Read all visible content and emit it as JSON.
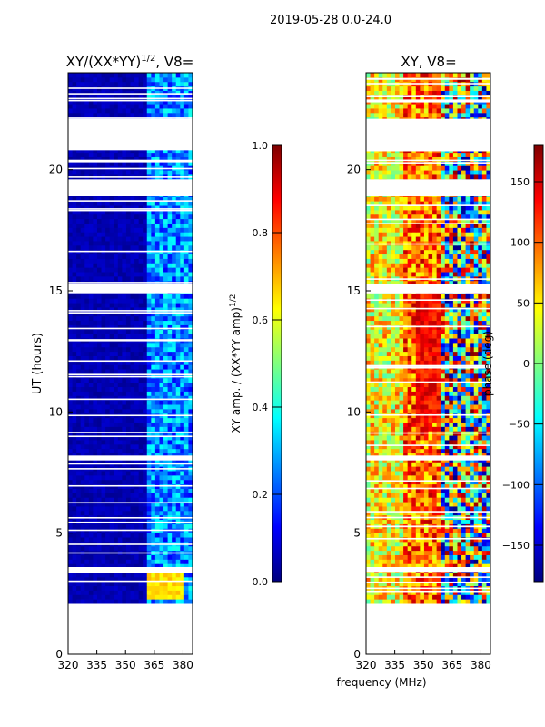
{
  "suptitle": "2019-05-28 0.0-24.0",
  "colors": {
    "jet": [
      "#00007f",
      "#0000ff",
      "#007fff",
      "#00ffff",
      "#7fff7f",
      "#ffff00",
      "#ff7f00",
      "#ff0000",
      "#7f0000"
    ],
    "axes": "#000000",
    "background": "#ffffff"
  },
  "chart_data": [
    {
      "type": "heatmap",
      "title_main": "XY/(XX*YY)",
      "title_exp": "1/2",
      "title_suffix": ", V8=",
      "xlabel": "",
      "ylabel": "UT (hours)",
      "xlim": [
        320,
        385
      ],
      "ylim": [
        0,
        24
      ],
      "xticks": [
        "320",
        "335",
        "350",
        "365",
        "380"
      ],
      "xtick_values": [
        320,
        335,
        350,
        365,
        380
      ],
      "yticks": [
        "0",
        "5",
        "10",
        "15",
        "20"
      ],
      "ytick_values": [
        0,
        5,
        10,
        15,
        20
      ],
      "data_extent_hours": [
        2.1,
        24
      ],
      "description_bands": [
        {
          "from_mhz": 320,
          "to_mhz": 361,
          "level": 0.05
        },
        {
          "from_mhz": 361,
          "to_mhz": 385,
          "level": 0.25
        }
      ],
      "bright_region": {
        "hours": [
          2.2,
          3.3
        ],
        "mhz": [
          361,
          380
        ],
        "level": 0.6
      },
      "gap_hours": [
        [
          20.8,
          22.1
        ],
        [
          18.9,
          19.6
        ],
        [
          14.9,
          15.3
        ],
        [
          8.0,
          8.2
        ],
        [
          3.4,
          3.6
        ]
      ],
      "colorbar": {
        "label_main": "XY amp. / (XX*YY amp)",
        "label_exp": "1/2",
        "ticks": [
          "0.0",
          "0.2",
          "0.4",
          "0.6",
          "0.8",
          "1.0"
        ],
        "tick_values": [
          0.0,
          0.2,
          0.4,
          0.6,
          0.8,
          1.0
        ],
        "range": [
          0,
          1
        ]
      }
    },
    {
      "type": "heatmap",
      "title_main": "XY, V8=",
      "xlabel": "frequency (MHz)",
      "ylabel": "",
      "xlim": [
        320,
        385
      ],
      "ylim": [
        0,
        24
      ],
      "xticks": [
        "320",
        "335",
        "350",
        "365",
        "380"
      ],
      "xtick_values": [
        320,
        335,
        350,
        365,
        380
      ],
      "yticks": [
        "0",
        "5",
        "10",
        "15",
        "20"
      ],
      "ytick_values": [
        0,
        5,
        10,
        15,
        20
      ],
      "data_extent_hours": [
        2.1,
        24
      ],
      "gap_hours": [
        [
          20.8,
          22.1
        ],
        [
          18.9,
          19.6
        ],
        [
          14.9,
          15.3
        ],
        [
          8.0,
          8.2
        ],
        [
          3.4,
          3.6
        ]
      ],
      "colorbar": {
        "label_main": "phase (deg)",
        "ticks": [
          "−150",
          "−100",
          "−50",
          "0",
          "50",
          "100",
          "150"
        ],
        "tick_values": [
          -150,
          -100,
          -50,
          0,
          50,
          100,
          150
        ],
        "range": [
          -180,
          180
        ]
      }
    }
  ]
}
